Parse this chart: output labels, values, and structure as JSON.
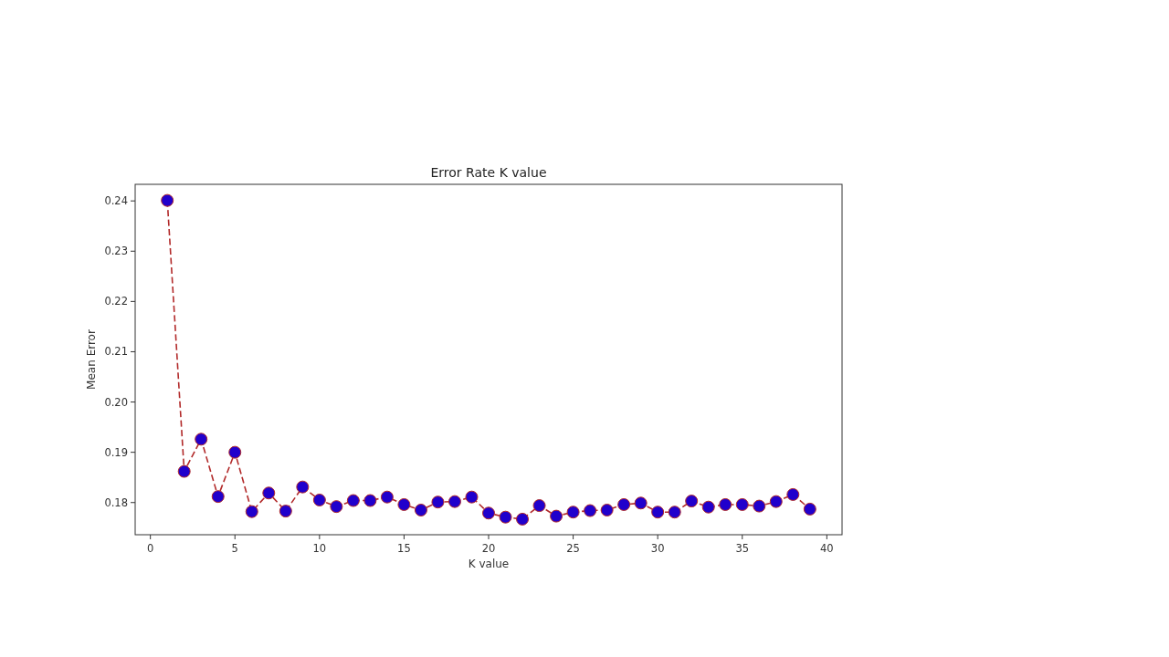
{
  "chart_data": {
    "type": "line",
    "title": "Error Rate K value",
    "xlabel": "K value",
    "ylabel": "Mean Error",
    "x": [
      1,
      2,
      3,
      4,
      5,
      6,
      7,
      8,
      9,
      10,
      11,
      12,
      13,
      14,
      15,
      16,
      17,
      18,
      19,
      20,
      21,
      22,
      23,
      24,
      25,
      26,
      27,
      28,
      29,
      30,
      31,
      32,
      33,
      34,
      35,
      36,
      37,
      38,
      39
    ],
    "series": [
      {
        "color": "#b22a2a",
        "colors": [
          "#2000cc",
          "#2000cc",
          "#2000cc",
          "#2000cc",
          "#2000cc",
          "#2000cc",
          "#2000cc",
          "#2000cc",
          "#2000cc",
          "#2000cc",
          "#2000cc",
          "#2000cc",
          "#2000cc",
          "#2000cc",
          "#2000cc",
          "#2000cc",
          "#2000cc",
          "#2000cc",
          "#2000cc",
          "#2000cc",
          "#2000cc",
          "#2000cc",
          "#2000cc",
          "#2000cc",
          "#2000cc",
          "#2000cc",
          "#2000cc",
          "#2000cc",
          "#2000cc",
          "#2000cc",
          "#2000cc",
          "#2000cc",
          "#2000cc",
          "#2000cc",
          "#2000cc",
          "#2000cc",
          "#2000cc",
          "#2000cc",
          "#2000cc"
        ],
        "values": [
          0.2401,
          0.1862,
          0.1926,
          0.1812,
          0.19,
          0.1782,
          0.1819,
          0.1783,
          0.1831,
          0.1805,
          0.1792,
          0.1804,
          0.1804,
          0.1811,
          0.1796,
          0.1785,
          0.1801,
          0.1802,
          0.1811,
          0.1779,
          0.1771,
          0.1767,
          0.1794,
          0.1773,
          0.1781,
          0.1784,
          0.1785,
          0.1796,
          0.1799,
          0.1781,
          0.1781,
          0.1803,
          0.1791,
          0.1796,
          0.1796,
          0.1793,
          0.1802,
          0.1816,
          0.1787
        ]
      }
    ],
    "xlim": [
      -0.9,
      40.9
    ],
    "xticks": [
      0,
      5,
      10,
      15,
      20,
      25,
      30,
      35,
      40
    ],
    "ylim": [
      0.1736,
      0.2433
    ],
    "yticks": [
      0.18,
      0.19,
      {
        "value": 0.2,
        "label": "0.20"
      },
      0.21,
      0.22,
      0.23,
      0.24
    ],
    "marker": "circle",
    "line_style": "dashed"
  }
}
